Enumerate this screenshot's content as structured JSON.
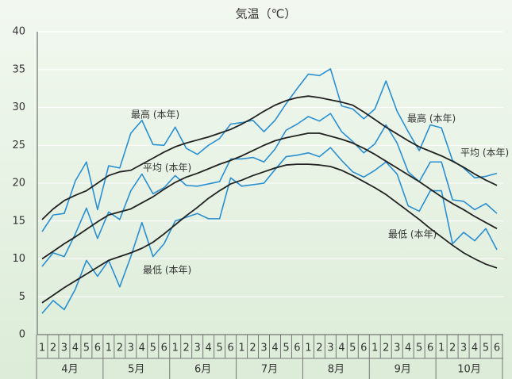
{
  "chart_data": {
    "type": "line",
    "title": "気温（℃）",
    "categories": [
      "1",
      "2",
      "3",
      "4",
      "5",
      "6",
      "1",
      "2",
      "3",
      "4",
      "5",
      "6",
      "1",
      "2",
      "3",
      "4",
      "5",
      "6",
      "1",
      "2",
      "3",
      "4",
      "5",
      "6",
      "1",
      "2",
      "3",
      "4",
      "5",
      "6",
      "1",
      "2",
      "3",
      "4",
      "5",
      "6",
      "1",
      "2",
      "3",
      "4",
      "5",
      "6"
    ],
    "months": [
      "4月",
      "5月",
      "6月",
      "7月",
      "8月",
      "9月",
      "10月"
    ],
    "ylim": [
      0,
      40
    ],
    "yticks": [
      0,
      5,
      10,
      15,
      20,
      25,
      30,
      35,
      40
    ],
    "grid": true,
    "series": [
      {
        "color": "#2a8fd0",
        "values": [
          13.6,
          15.8,
          16.0,
          20.3,
          22.8,
          16.5,
          22.3,
          22.0,
          26.6,
          28.3,
          25.1,
          25.0,
          27.4,
          24.6,
          23.8,
          25.0,
          25.9,
          27.8,
          28.0,
          28.3,
          26.8,
          28.3,
          30.5,
          32.5,
          34.4,
          34.2,
          35.1,
          30.2,
          29.8,
          28.5,
          29.8,
          33.5,
          29.5,
          26.8,
          24.3,
          27.7,
          27.3,
          23.0,
          22.0,
          20.7,
          20.9,
          21.3
        ]
      },
      {
        "color": "#2a8fd0",
        "values": [
          9.0,
          10.8,
          10.3,
          13.3,
          16.7,
          12.7,
          16.2,
          15.2,
          19.0,
          21.2,
          18.6,
          19.4,
          21.0,
          19.7,
          19.6,
          19.9,
          20.2,
          23.2,
          23.2,
          23.4,
          22.8,
          24.5,
          27.0,
          27.8,
          28.8,
          28.2,
          29.2,
          26.8,
          25.5,
          24.0,
          25.2,
          27.7,
          25.3,
          21.5,
          20.2,
          22.8,
          22.8,
          17.8,
          17.6,
          16.5,
          17.3,
          16.0
        ]
      },
      {
        "color": "#2a8fd0",
        "values": [
          2.8,
          4.5,
          3.3,
          6.0,
          9.8,
          7.7,
          9.8,
          6.3,
          10.3,
          14.8,
          10.3,
          12.0,
          15.0,
          15.5,
          16.0,
          15.3,
          15.3,
          20.7,
          19.6,
          19.8,
          20.0,
          21.8,
          23.5,
          23.7,
          24.0,
          23.5,
          24.7,
          23.0,
          21.5,
          20.8,
          21.7,
          22.8,
          21.2,
          17.0,
          16.3,
          19.0,
          19.0,
          12.0,
          13.5,
          12.4,
          14.0,
          11.2
        ]
      },
      {
        "color": "#222222",
        "values": [
          15.2,
          16.6,
          17.7,
          18.4,
          19.0,
          20.0,
          21.0,
          21.5,
          21.7,
          22.5,
          23.3,
          24.1,
          24.8,
          25.3,
          25.7,
          26.1,
          26.6,
          27.1,
          27.8,
          28.6,
          29.5,
          30.3,
          30.9,
          31.3,
          31.5,
          31.3,
          31.0,
          30.7,
          30.3,
          29.4,
          28.4,
          27.4,
          26.5,
          25.6,
          24.8,
          24.2,
          23.6,
          22.9,
          22.1,
          21.2,
          20.4,
          19.7
        ]
      },
      {
        "color": "#222222",
        "values": [
          10.0,
          11.0,
          12.0,
          12.9,
          13.9,
          14.9,
          15.8,
          16.2,
          16.6,
          17.4,
          18.2,
          19.2,
          20.1,
          20.8,
          21.3,
          21.9,
          22.5,
          23.0,
          23.6,
          24.3,
          25.0,
          25.6,
          26.0,
          26.3,
          26.6,
          26.6,
          26.2,
          25.8,
          25.3,
          24.6,
          23.8,
          22.9,
          22.0,
          21.1,
          20.2,
          19.2,
          18.2,
          17.3,
          16.5,
          15.6,
          14.8,
          14.0
        ]
      },
      {
        "color": "#222222",
        "values": [
          4.2,
          5.2,
          6.2,
          7.1,
          8.0,
          8.9,
          9.8,
          10.3,
          10.8,
          11.4,
          12.2,
          13.3,
          14.5,
          15.7,
          16.8,
          18.0,
          19.0,
          19.9,
          20.4,
          21.0,
          21.5,
          22.0,
          22.4,
          22.5,
          22.5,
          22.4,
          22.2,
          21.7,
          21.0,
          20.2,
          19.4,
          18.5,
          17.4,
          16.3,
          15.2,
          14.0,
          12.9,
          11.8,
          10.8,
          10.0,
          9.3,
          8.8
        ]
      }
    ],
    "annotations": [
      "最高 (本年)",
      "平均 (本年)",
      "最低 (本年)",
      "最高 (本年)",
      "平均 (本年)",
      "最低 (本年)"
    ]
  }
}
